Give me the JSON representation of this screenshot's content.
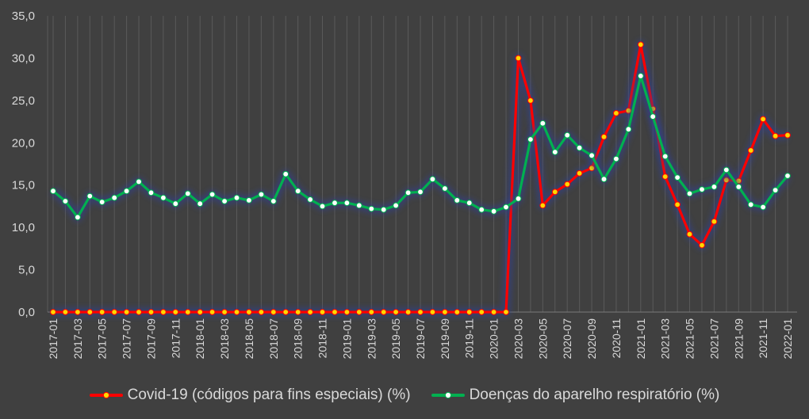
{
  "chart_data": {
    "type": "line",
    "title": "",
    "xlabel": "",
    "ylabel": "",
    "ylim": [
      0,
      35
    ],
    "ytick_labels": [
      "0,0",
      "5,0",
      "10,0",
      "15,0",
      "20,0",
      "25,0",
      "30,0",
      "35,0"
    ],
    "grid": "vertical",
    "legend_position": "bottom",
    "x": [
      "2017-01",
      "2017-02",
      "2017-03",
      "2017-04",
      "2017-05",
      "2017-06",
      "2017-07",
      "2017-08",
      "2017-09",
      "2017-10",
      "2017-11",
      "2017-12",
      "2018-01",
      "2018-02",
      "2018-03",
      "2018-04",
      "2018-05",
      "2018-06",
      "2018-07",
      "2018-08",
      "2018-09",
      "2018-10",
      "2018-11",
      "2018-12",
      "2019-01",
      "2019-02",
      "2019-03",
      "2019-04",
      "2019-05",
      "2019-06",
      "2019-07",
      "2019-08",
      "2019-09",
      "2019-10",
      "2019-11",
      "2019-12",
      "2020-01",
      "2020-02",
      "2020-03",
      "2020-04",
      "2020-05",
      "2020-06",
      "2020-07",
      "2020-08",
      "2020-09",
      "2020-10",
      "2020-11",
      "2020-12",
      "2021-01",
      "2021-02",
      "2021-03",
      "2021-04",
      "2021-05",
      "2021-06",
      "2021-07",
      "2021-08",
      "2021-09",
      "2021-10",
      "2021-11",
      "2021-12",
      "2022-01"
    ],
    "x_tick_labels": [
      "2017-01",
      "2017-03",
      "2017-05",
      "2017-07",
      "2017-09",
      "2017-11",
      "2018-01",
      "2018-03",
      "2018-05",
      "2018-07",
      "2018-09",
      "2018-11",
      "2019-01",
      "2019-03",
      "2019-05",
      "2019-07",
      "2019-09",
      "2019-11",
      "2020-01",
      "2020-03",
      "2020-05",
      "2020-07",
      "2020-09",
      "2020-11",
      "2021-01",
      "2021-03",
      "2021-05",
      "2021-07",
      "2021-09",
      "2021-11",
      "2022-01"
    ],
    "series": [
      {
        "name": "Covid-19 (códigos para fins especiais) (%)",
        "color": "#ff0000",
        "marker_color": "#ffd700",
        "values": [
          0,
          0,
          0,
          0,
          0,
          0,
          0,
          0,
          0,
          0,
          0,
          0,
          0,
          0,
          0,
          0,
          0,
          0,
          0,
          0,
          0,
          0,
          0,
          0,
          0,
          0,
          0,
          0,
          0,
          0,
          0,
          0,
          0,
          0,
          0,
          0,
          0,
          0,
          30.0,
          25.0,
          12.6,
          14.2,
          15.1,
          16.4,
          17.0,
          20.7,
          23.5,
          23.8,
          31.6,
          24.0,
          16.0,
          12.7,
          9.2,
          7.9,
          10.7,
          15.6,
          15.5,
          19.1,
          22.8,
          20.8,
          20.9
        ]
      },
      {
        "name": "Doenças do aparelho respiratório (%)",
        "color": "#00b050",
        "marker_color": "#ffffff",
        "values": [
          14.3,
          13.1,
          11.2,
          13.7,
          13.0,
          13.5,
          14.3,
          15.4,
          14.1,
          13.5,
          12.8,
          14.0,
          12.8,
          13.9,
          13.1,
          13.5,
          13.2,
          13.9,
          13.1,
          16.3,
          14.3,
          13.3,
          12.5,
          12.9,
          12.9,
          12.6,
          12.2,
          12.1,
          12.6,
          14.1,
          14.2,
          15.7,
          14.6,
          13.2,
          12.9,
          12.1,
          11.9,
          12.4,
          13.4,
          20.4,
          22.3,
          18.9,
          20.9,
          19.4,
          18.5,
          15.7,
          18.1,
          21.6,
          27.9,
          23.1,
          18.4,
          15.9,
          14.0,
          14.5,
          14.8,
          16.8,
          14.8,
          12.7,
          12.4,
          14.4,
          16.1
        ]
      }
    ]
  }
}
